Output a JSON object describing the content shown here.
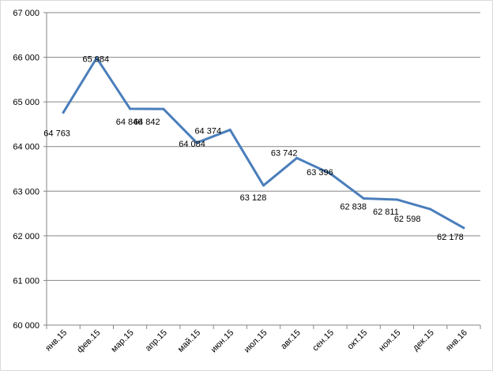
{
  "chart_data": {
    "type": "line",
    "title": "",
    "xlabel": "",
    "ylabel": "",
    "categories": [
      "янв.15",
      "фев.15",
      "мар.15",
      "апр.15",
      "май.15",
      "июн.15",
      "июл.15",
      "авг.15",
      "сен.15",
      "окт.15",
      "ноя.15",
      "дек.15",
      "янв.16"
    ],
    "series": [
      {
        "values": [
          64763,
          65984,
          64846,
          64842,
          64084,
          64374,
          63128,
          63742,
          63396,
          62838,
          62811,
          62598,
          62178
        ],
        "labels": [
          "64 763",
          "65 984",
          "64 846",
          "64 842",
          "64 084",
          "64 374",
          "63 128",
          "63 742",
          "63 396",
          "62 838",
          "62 811",
          "62 598",
          "62 178"
        ],
        "color": "#4a7ebb"
      }
    ],
    "ylim": [
      60000,
      67000
    ],
    "yticks": [
      60000,
      61000,
      62000,
      63000,
      64000,
      65000,
      66000,
      67000
    ],
    "ytick_labels": [
      "60 000",
      "61 000",
      "62 000",
      "63 000",
      "64 000",
      "65 000",
      "66 000",
      "67 000"
    ],
    "grid": true,
    "legend": "none",
    "gridline_color": "#868686"
  }
}
